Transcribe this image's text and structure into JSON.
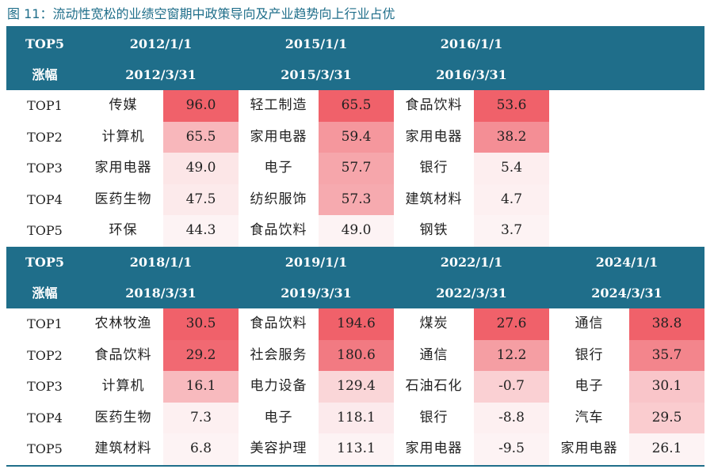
{
  "title": "图 11：流动性宽松的业绩空窗期中政策导向及产业趋势向上行业占优",
  "colors": {
    "header_bg": "#1f6e8a",
    "heat_high": "#f0616a",
    "heat_low": "#fdf3f4"
  },
  "tables": [
    {
      "header_left": [
        "TOP5",
        "涨幅"
      ],
      "periods": [
        {
          "start": "2012/1/1",
          "end": "2012/3/31"
        },
        {
          "start": "2015/1/1",
          "end": "2015/3/31"
        },
        {
          "start": "2016/1/1",
          "end": "2016/3/31"
        },
        {
          "start": "",
          "end": ""
        }
      ],
      "rows": [
        {
          "rank": "TOP1",
          "cells": [
            {
              "name": "传媒",
              "value": "96.0"
            },
            {
              "name": "轻工制造",
              "value": "65.5"
            },
            {
              "name": "食品饮料",
              "value": "53.6"
            },
            {
              "name": "",
              "value": ""
            }
          ]
        },
        {
          "rank": "TOP2",
          "cells": [
            {
              "name": "计算机",
              "value": "65.5"
            },
            {
              "name": "家用电器",
              "value": "59.4"
            },
            {
              "name": "家用电器",
              "value": "38.2"
            },
            {
              "name": "",
              "value": ""
            }
          ]
        },
        {
          "rank": "TOP3",
          "cells": [
            {
              "name": "家用电器",
              "value": "49.0"
            },
            {
              "name": "电子",
              "value": "57.7"
            },
            {
              "name": "银行",
              "value": "5.4"
            },
            {
              "name": "",
              "value": ""
            }
          ]
        },
        {
          "rank": "TOP4",
          "cells": [
            {
              "name": "医药生物",
              "value": "47.5"
            },
            {
              "name": "纺织服饰",
              "value": "57.3"
            },
            {
              "name": "建筑材料",
              "value": "4.7"
            },
            {
              "name": "",
              "value": ""
            }
          ]
        },
        {
          "rank": "TOP5",
          "cells": [
            {
              "name": "环保",
              "value": "44.3"
            },
            {
              "name": "食品饮料",
              "value": "49.0"
            },
            {
              "name": "钢铁",
              "value": "3.7"
            },
            {
              "name": "",
              "value": ""
            }
          ]
        }
      ]
    },
    {
      "header_left": [
        "TOP5",
        "涨幅"
      ],
      "periods": [
        {
          "start": "2018/1/1",
          "end": "2018/3/31"
        },
        {
          "start": "2019/1/1",
          "end": "2019/3/31"
        },
        {
          "start": "2022/1/1",
          "end": "2022/3/31"
        },
        {
          "start": "2024/1/1",
          "end": "2024/3/31"
        }
      ],
      "rows": [
        {
          "rank": "TOP1",
          "cells": [
            {
              "name": "农林牧渔",
              "value": "30.5"
            },
            {
              "name": "食品饮料",
              "value": "194.6"
            },
            {
              "name": "煤炭",
              "value": "27.6"
            },
            {
              "name": "通信",
              "value": "38.8"
            }
          ]
        },
        {
          "rank": "TOP2",
          "cells": [
            {
              "name": "食品饮料",
              "value": "29.2"
            },
            {
              "name": "社会服务",
              "value": "180.6"
            },
            {
              "name": "通信",
              "value": "12.2"
            },
            {
              "name": "银行",
              "value": "35.7"
            }
          ]
        },
        {
          "rank": "TOP3",
          "cells": [
            {
              "name": "计算机",
              "value": "16.1"
            },
            {
              "name": "电力设备",
              "value": "129.4"
            },
            {
              "name": "石油石化",
              "value": "-0.7"
            },
            {
              "name": "电子",
              "value": "30.1"
            }
          ]
        },
        {
          "rank": "TOP4",
          "cells": [
            {
              "name": "医药生物",
              "value": "7.3"
            },
            {
              "name": "电子",
              "value": "118.1"
            },
            {
              "name": "银行",
              "value": "-8.8"
            },
            {
              "name": "汽车",
              "value": "29.5"
            }
          ]
        },
        {
          "rank": "TOP5",
          "cells": [
            {
              "name": "建筑材料",
              "value": "6.8"
            },
            {
              "name": "美容护理",
              "value": "113.1"
            },
            {
              "name": "家用电器",
              "value": "-9.5"
            },
            {
              "name": "家用电器",
              "value": "26.1"
            }
          ]
        }
      ]
    }
  ]
}
